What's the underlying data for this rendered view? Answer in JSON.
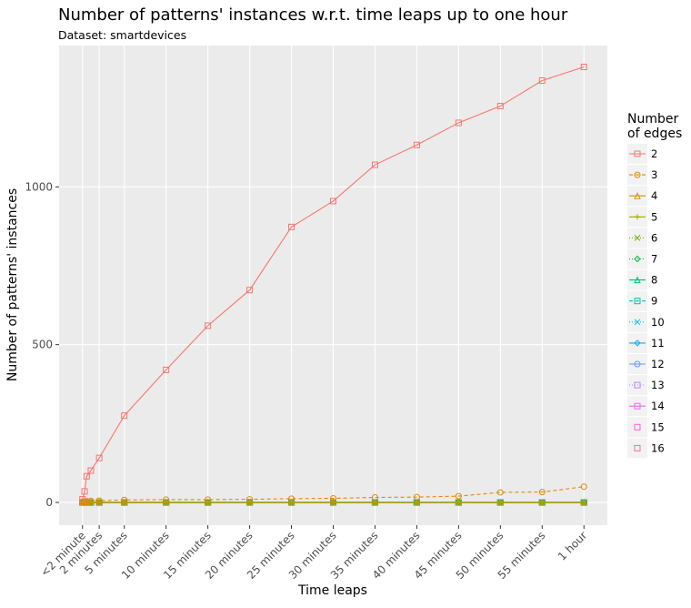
{
  "chart_data": {
    "type": "line",
    "title": "Number of patterns' instances w.r.t. time leaps up to one hour",
    "subtitle": "Dataset: smartdevices",
    "x_label": "Time leaps",
    "y_label": "Number of patterns' instances",
    "legend_title": "Number of edges",
    "legend_position": "right",
    "grid": true,
    "x": [
      0,
      0.25,
      0.5,
      1,
      2,
      5,
      10,
      15,
      20,
      25,
      30,
      35,
      40,
      45,
      50,
      55,
      60
    ],
    "xlim": [
      -2.8,
      62.8
    ],
    "xticks": [
      {
        "value": 0,
        "label": "<2 minute"
      },
      {
        "value": 2,
        "label": "2 minutes"
      },
      {
        "value": 5,
        "label": "5 minutes"
      },
      {
        "value": 10,
        "label": "10 minutes"
      },
      {
        "value": 15,
        "label": "15 minutes"
      },
      {
        "value": 20,
        "label": "20 minutes"
      },
      {
        "value": 25,
        "label": "25 minutes"
      },
      {
        "value": 30,
        "label": "30 minutes"
      },
      {
        "value": 35,
        "label": "35 minutes"
      },
      {
        "value": 40,
        "label": "40 minutes"
      },
      {
        "value": 45,
        "label": "45 minutes"
      },
      {
        "value": 50,
        "label": "50 minutes"
      },
      {
        "value": 55,
        "label": "55 minutes"
      },
      {
        "value": 60,
        "label": "1 hour"
      }
    ],
    "ylim": [
      -72,
      1448
    ],
    "yticks": [
      0,
      500,
      1000
    ],
    "series": [
      {
        "name": "2",
        "color": "#F8766D",
        "linetype": "solid",
        "marker": "square",
        "values": [
          10,
          35,
          83,
          101,
          141,
          275,
          420,
          560,
          673,
          873,
          955,
          1070,
          1133,
          1203,
          1256,
          1337,
          1380
        ]
      },
      {
        "name": "3",
        "color": "#E58700",
        "linetype": "dashed",
        "marker": "circle",
        "values": [
          2,
          3,
          4,
          5,
          6,
          8,
          9,
          9,
          10,
          12,
          13,
          16,
          17,
          20,
          32,
          33,
          50
        ]
      },
      {
        "name": "4",
        "color": "#C99800",
        "linetype": "solid",
        "marker": "triangle",
        "values": [
          0,
          0,
          1,
          1,
          1,
          1,
          1,
          1,
          1,
          1,
          1,
          1,
          1,
          1,
          1,
          1,
          1
        ]
      },
      {
        "name": "5",
        "color": "#A3A500",
        "linetype": "solid",
        "marker": "plus",
        "values": [
          0,
          0,
          0,
          0,
          0,
          0,
          0,
          0,
          0,
          0,
          0,
          0,
          0,
          0,
          0,
          0,
          0
        ]
      },
      {
        "name": "6",
        "color": "#6BB100",
        "linetype": "dotted",
        "marker": "cross",
        "values": [
          0,
          0,
          0,
          0,
          0,
          0,
          0,
          0,
          0,
          0,
          0,
          0,
          0,
          0,
          0,
          0,
          0
        ]
      },
      {
        "name": "7",
        "color": "#00BA38",
        "linetype": "dotted",
        "marker": "diamond",
        "values": [
          0,
          0,
          0,
          0,
          0,
          0,
          0,
          0,
          0,
          0,
          0,
          0,
          0,
          0,
          0,
          0,
          0
        ]
      },
      {
        "name": "8",
        "color": "#00BF7D",
        "linetype": "solid",
        "marker": "triangle",
        "values": [
          0,
          0,
          0,
          0,
          0,
          0,
          0,
          0,
          0,
          0,
          0,
          0,
          0,
          0,
          0,
          0,
          0
        ]
      },
      {
        "name": "9",
        "color": "#00C0AF",
        "linetype": "dashed",
        "marker": "square",
        "values": [
          0,
          0,
          0,
          0,
          0,
          0,
          0,
          0,
          0,
          0,
          0,
          0,
          0,
          0,
          0,
          0,
          0
        ]
      },
      {
        "name": "10",
        "color": "#00BCD8",
        "linetype": "dotted",
        "marker": "cross",
        "values": [
          0,
          0,
          0,
          0,
          0,
          0,
          0,
          0,
          0,
          0,
          0,
          0,
          0,
          0,
          0,
          0,
          0
        ]
      },
      {
        "name": "11",
        "color": "#00B0F6",
        "linetype": "solid",
        "marker": "diamond",
        "values": [
          0,
          0,
          0,
          0,
          0,
          0,
          0,
          0,
          0,
          0,
          0,
          0,
          0,
          0,
          0,
          0,
          0
        ]
      },
      {
        "name": "12",
        "color": "#619CFF",
        "linetype": "solid",
        "marker": "circle",
        "values": [
          0,
          0,
          0,
          0,
          0,
          0,
          0,
          0,
          0,
          0,
          0,
          0,
          0,
          0,
          0,
          0,
          0
        ]
      },
      {
        "name": "13",
        "color": "#B983FF",
        "linetype": "dotted",
        "marker": "square",
        "values": [
          0,
          0,
          0,
          0,
          0,
          0,
          0,
          0,
          0,
          0,
          0,
          0,
          0,
          0,
          0,
          0,
          0
        ]
      },
      {
        "name": "14",
        "color": "#E76BF3",
        "linetype": "solid",
        "marker": "square",
        "values": [
          0,
          0,
          0,
          0,
          0,
          0,
          0,
          0,
          0,
          0,
          0,
          0,
          0,
          0,
          0,
          0,
          0
        ]
      },
      {
        "name": "15",
        "color": "#FD61D1",
        "linetype": "none",
        "marker": "square",
        "values": [
          0,
          0,
          0,
          0,
          0,
          0,
          0,
          0,
          0,
          0,
          0,
          0,
          0,
          0,
          0,
          0,
          0
        ]
      },
      {
        "name": "16",
        "color": "#FF67A4",
        "linetype": "none",
        "marker": "square",
        "values": [
          0,
          0,
          0,
          0,
          0,
          0,
          0,
          0,
          0,
          0,
          0,
          0,
          0,
          0,
          0,
          0,
          0
        ]
      }
    ]
  }
}
